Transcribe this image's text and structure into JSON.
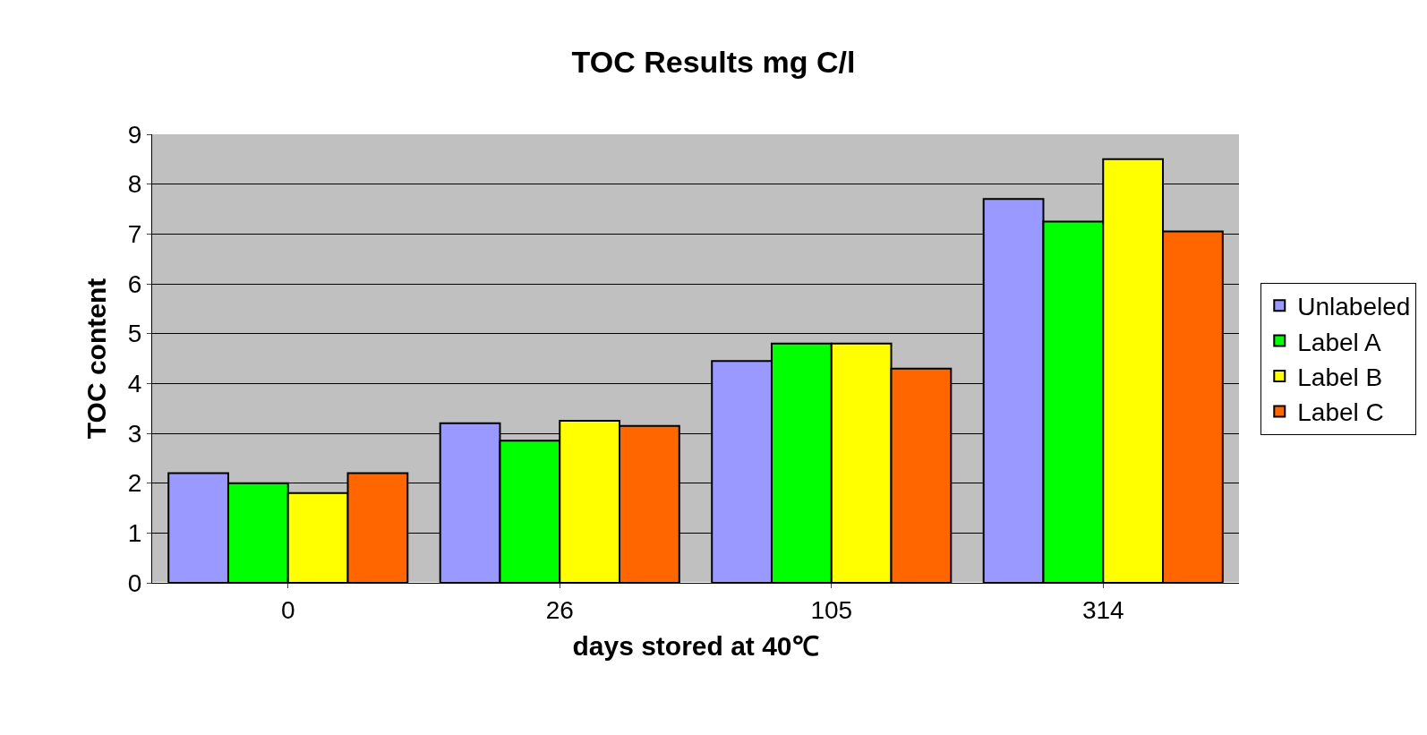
{
  "chart_data": {
    "type": "bar",
    "title": "TOC Results mg C/l",
    "xlabel": "days stored at 40℃",
    "ylabel": "TOC content",
    "categories": [
      "0",
      "26",
      "105",
      "314"
    ],
    "series": [
      {
        "name": "Unlabeled",
        "color": "#9999ff",
        "values": [
          2.2,
          3.2,
          4.45,
          7.7
        ]
      },
      {
        "name": "Label A",
        "color": "#00ff00",
        "values": [
          2.0,
          2.85,
          4.8,
          7.25
        ]
      },
      {
        "name": "Label B",
        "color": "#ffff00",
        "values": [
          1.8,
          3.25,
          4.8,
          8.5
        ]
      },
      {
        "name": "Label C",
        "color": "#ff6600",
        "values": [
          2.2,
          3.15,
          4.3,
          7.05
        ]
      }
    ],
    "ylim": [
      0,
      9
    ],
    "yticks": [
      0,
      1,
      2,
      3,
      4,
      5,
      6,
      7,
      8,
      9
    ],
    "grid": "y",
    "legend": "right"
  }
}
